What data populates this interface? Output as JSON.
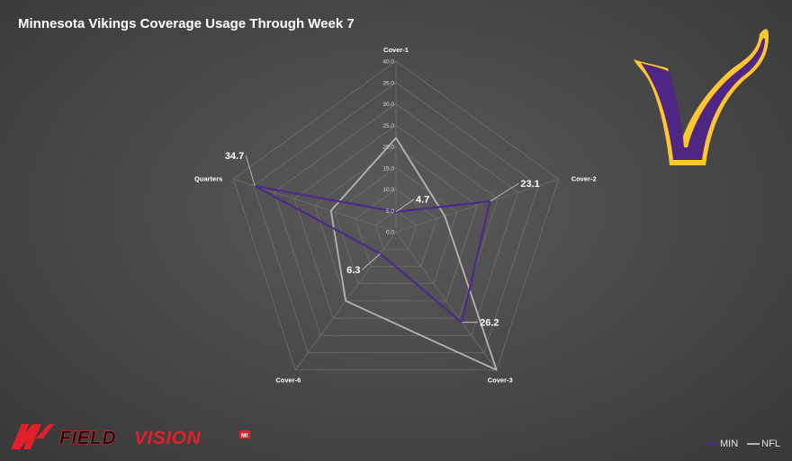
{
  "chart_data": {
    "type": "radar",
    "title": "Minnesota Vikings Coverage Usage Through Week 7",
    "axes": [
      "Cover-1",
      "Cover-2",
      "Cover-3",
      "Cover-6",
      "Quarters"
    ],
    "r_range": [
      0,
      40
    ],
    "ticks": [
      "0.0",
      "5.0",
      "10.0",
      "15.0",
      "20.0",
      "25.0",
      "30.0",
      "35.0",
      "40.0"
    ],
    "grid": true,
    "legend_position": "bottom-right",
    "series": [
      {
        "name": "MIN",
        "values": [
          4.7,
          23.1,
          26.2,
          6.3,
          34.7
        ],
        "color": "#4b2a8a",
        "labels": [
          "4.7",
          "23.1",
          "26.2",
          "6.3",
          "34.7"
        ]
      },
      {
        "name": "NFL",
        "values": [
          22.0,
          12.0,
          40.0,
          20.0,
          16.0
        ],
        "color": "#b4b4b4"
      }
    ]
  },
  "branding": {
    "watermark": "FIELDVISION",
    "watermark_badge": "MI",
    "watermark_color": "#e0202a",
    "team_logo": "vikings-v-logo",
    "team_logo_colors": {
      "fill": "#4f2683",
      "outline": "#ffc62f"
    }
  }
}
